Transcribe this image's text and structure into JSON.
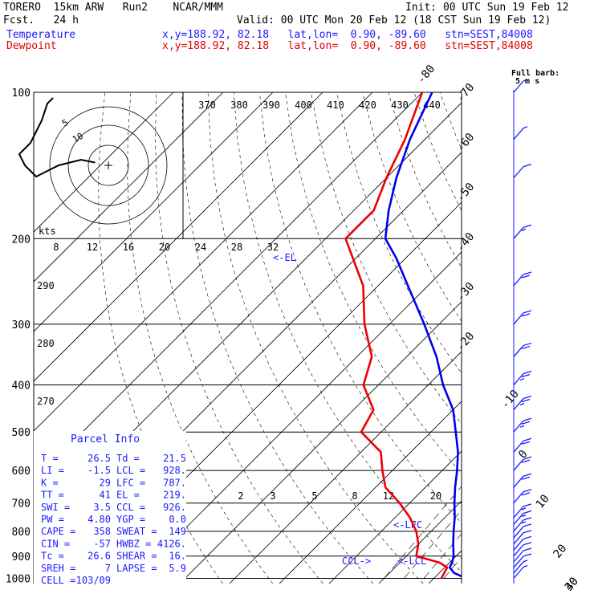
{
  "header": {
    "model": "TORERO  15km ARW   Run2    NCAR/MMM",
    "init": "Init: 00 UTC Sun 19 Feb 12",
    "fcst": "Fcst.   24 h",
    "valid": "Valid: 00 UTC Mon 20 Feb 12 (18 CST Sun 19 Feb 12)",
    "temperature_label": "Temperature",
    "dewpoint_label": "Dewpoint",
    "temperature_loc": "x,y=188.92, 82.18   lat,lon=  0.90, -89.60   stn=SEST,84008",
    "dewpoint_loc": "x,y=188.92, 82.18   lat,lon=  0.90, -89.60   stn=SEST,84008"
  },
  "full_barb_label_1": "Full barb:",
  "full_barb_label_2": "5 m s",
  "hodograph": {
    "units": "kts",
    "ring_labels": [
      "5",
      "10"
    ]
  },
  "parcel_info": {
    "title": "Parcel Info",
    "rows": [
      [
        "T  =",
        "26.5",
        "Td =",
        "21.5"
      ],
      [
        "LI =",
        "-1.5",
        "LCL =",
        "928."
      ],
      [
        "K  =",
        "29",
        "LFC =",
        "787."
      ],
      [
        "TT =",
        "41",
        "EL =",
        "219."
      ],
      [
        "SWI =",
        "3.5",
        "CCL =",
        "926."
      ],
      [
        "PW =",
        "4.80",
        "YGP =",
        "0.0"
      ],
      [
        "CAPE =",
        "358",
        "SWEAT =",
        "149"
      ],
      [
        "CIN =",
        "-57",
        "HWBZ =",
        "4126."
      ],
      [
        "Tc =",
        "26.6",
        "SHEAR =",
        "16."
      ],
      [
        "SREH =",
        "7",
        "LAPSE =",
        "5.9"
      ],
      [
        "CELL =",
        "103/09",
        "",
        ""
      ]
    ]
  },
  "chart_data": {
    "type": "line",
    "title": "",
    "ylabel": "",
    "pressure_levels": [
      100,
      200,
      300,
      400,
      500,
      600,
      700,
      800,
      900,
      1000
    ],
    "temperature_isotherm_labels": [
      "-80",
      "-70",
      "-60",
      "-50",
      "-40",
      "-30",
      "-20",
      "-10",
      "0",
      "10",
      "20",
      "30",
      "40"
    ],
    "theta_labels": [
      "370",
      "380",
      "390",
      "400",
      "410",
      "420",
      "430",
      "440"
    ],
    "upper_axis_labels": [
      "8",
      "12",
      "16",
      "20",
      "24",
      "28",
      "32"
    ],
    "left_axis_labels": [
      "290",
      "280",
      "270"
    ],
    "mixing_ratio_labels": [
      "2",
      "3",
      "5",
      "8",
      "12",
      "20"
    ],
    "annotations": [
      "<-EL",
      "<-LFC",
      "CCL->",
      "<-LCL"
    ],
    "series": [
      {
        "name": "Temperature",
        "color": "#0000ee",
        "points": [
          [
            1000,
            26.5
          ],
          [
            975,
            23
          ],
          [
            950,
            21
          ],
          [
            928,
            20.5
          ],
          [
            900,
            19.5
          ],
          [
            850,
            17
          ],
          [
            800,
            14.5
          ],
          [
            750,
            12
          ],
          [
            700,
            9
          ],
          [
            650,
            6
          ],
          [
            600,
            3
          ],
          [
            550,
            -0.5
          ],
          [
            500,
            -5
          ],
          [
            450,
            -10
          ],
          [
            400,
            -17
          ],
          [
            350,
            -24
          ],
          [
            300,
            -33
          ],
          [
            250,
            -44
          ],
          [
            219,
            -52
          ],
          [
            200,
            -58
          ],
          [
            175,
            -63
          ],
          [
            150,
            -68
          ],
          [
            125,
            -73
          ],
          [
            100,
            -78
          ]
        ]
      },
      {
        "name": "Dewpoint",
        "color": "#ee0000",
        "points": [
          [
            1000,
            21.5
          ],
          [
            950,
            20.5
          ],
          [
            928,
            18
          ],
          [
            900,
            12
          ],
          [
            850,
            10
          ],
          [
            800,
            7
          ],
          [
            750,
            3
          ],
          [
            700,
            -2
          ],
          [
            650,
            -8
          ],
          [
            600,
            -12
          ],
          [
            550,
            -16
          ],
          [
            500,
            -24
          ],
          [
            450,
            -26
          ],
          [
            400,
            -33
          ],
          [
            350,
            -37
          ],
          [
            300,
            -45
          ],
          [
            250,
            -53
          ],
          [
            200,
            -66
          ],
          [
            175,
            -66
          ],
          [
            150,
            -70
          ],
          [
            125,
            -74
          ],
          [
            100,
            -80
          ]
        ]
      }
    ],
    "wind_barbs_ms": [
      [
        1000,
        3
      ],
      [
        975,
        4
      ],
      [
        950,
        5
      ],
      [
        925,
        5
      ],
      [
        900,
        6
      ],
      [
        875,
        6
      ],
      [
        850,
        7
      ],
      [
        825,
        7
      ],
      [
        800,
        8
      ],
      [
        775,
        8
      ],
      [
        750,
        9
      ],
      [
        700,
        10
      ],
      [
        650,
        11
      ],
      [
        600,
        12
      ],
      [
        550,
        12
      ],
      [
        500,
        13
      ],
      [
        450,
        14
      ],
      [
        400,
        13
      ],
      [
        350,
        12
      ],
      [
        300,
        12
      ],
      [
        250,
        10
      ],
      [
        200,
        8
      ],
      [
        150,
        6
      ],
      [
        125,
        4
      ],
      [
        100,
        3
      ]
    ],
    "hodograph_points_ms": [
      [
        0.5,
        0.5
      ],
      [
        -2,
        1
      ],
      [
        -4,
        0.5
      ],
      [
        -6,
        0
      ],
      [
        -8,
        -1
      ],
      [
        -10,
        -2
      ],
      [
        -12,
        0
      ],
      [
        -13,
        2
      ],
      [
        -11,
        4
      ],
      [
        -10,
        6
      ],
      [
        -9,
        8
      ],
      [
        -8,
        11
      ],
      [
        -7,
        12
      ]
    ]
  }
}
